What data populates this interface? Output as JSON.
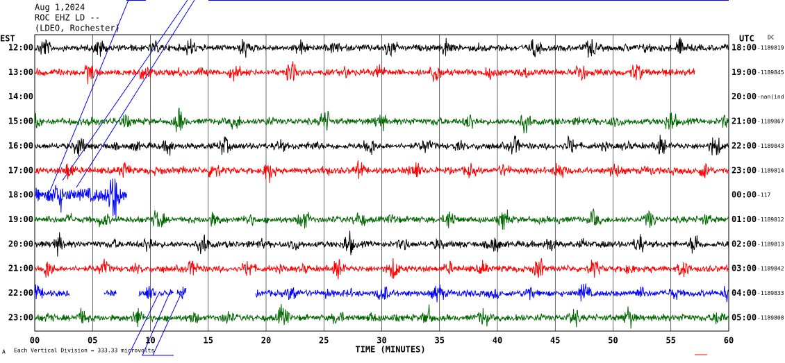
{
  "header": {
    "date": "Aug 1,2024",
    "station": "ROC EHZ LD --",
    "network": "(LDEO, Rochester)"
  },
  "left_axis_label": "EST",
  "right_axis_label": "UTC",
  "dc_label": "DC",
  "est_hours": [
    "12:00",
    "13:00",
    "14:00",
    "15:00",
    "16:00",
    "17:00",
    "18:00",
    "19:00",
    "20:00",
    "21:00",
    "22:00",
    "23:00"
  ],
  "utc_hours": [
    "18:00",
    "19:00",
    "20:00",
    "21:00",
    "22:00",
    "23:00",
    "00:00",
    "01:00",
    "02:00",
    "03:00",
    "04:00",
    "05:00"
  ],
  "dc_values": [
    "-1189819",
    "-1189845",
    "-nan(ind",
    "-1189867",
    "-1189843",
    "-1189814",
    "-117",
    "-1189812",
    "-1189813",
    "-1189842",
    "-1189833",
    "-1189808"
  ],
  "x_ticks": [
    "00",
    "05",
    "10",
    "15",
    "20",
    "25",
    "30",
    "35",
    "40",
    "45",
    "50",
    "55",
    "60"
  ],
  "x_axis_label": "TIME (MINUTES)",
  "footer": {
    "mark": "A",
    "scale": "Each Vertical Division =  333.33 microvolts"
  }
}
